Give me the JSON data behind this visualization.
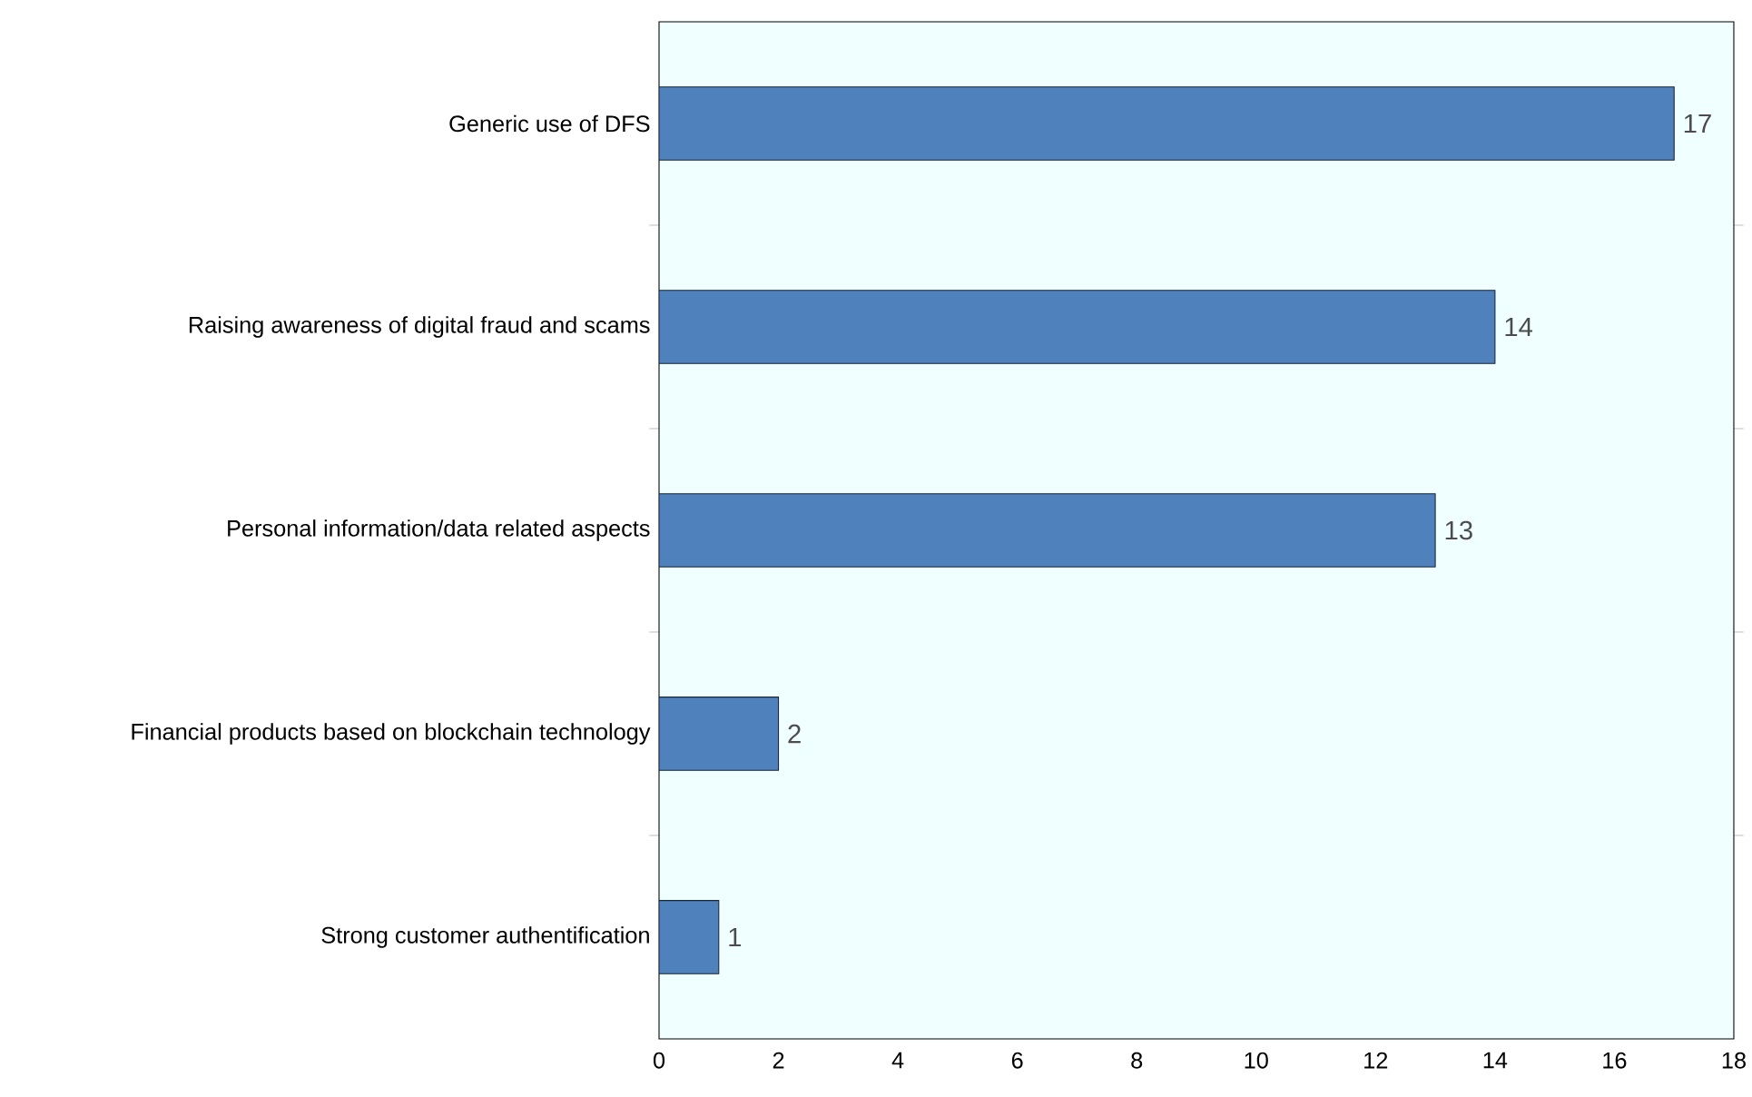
{
  "chart_data": {
    "type": "bar",
    "orientation": "horizontal",
    "categories": [
      "Generic use of DFS",
      "Raising awareness of digital fraud and scams",
      "Personal information/data related aspects",
      "Financial products based on blockchain technology",
      "Strong customer authentification"
    ],
    "values": [
      17,
      14,
      13,
      2,
      1
    ],
    "color": "#4f81bd",
    "xlim": [
      0,
      18
    ],
    "xticks": [
      0,
      2,
      4,
      6,
      8,
      10,
      12,
      14,
      16,
      18
    ],
    "data_labels": true,
    "grid": false
  }
}
